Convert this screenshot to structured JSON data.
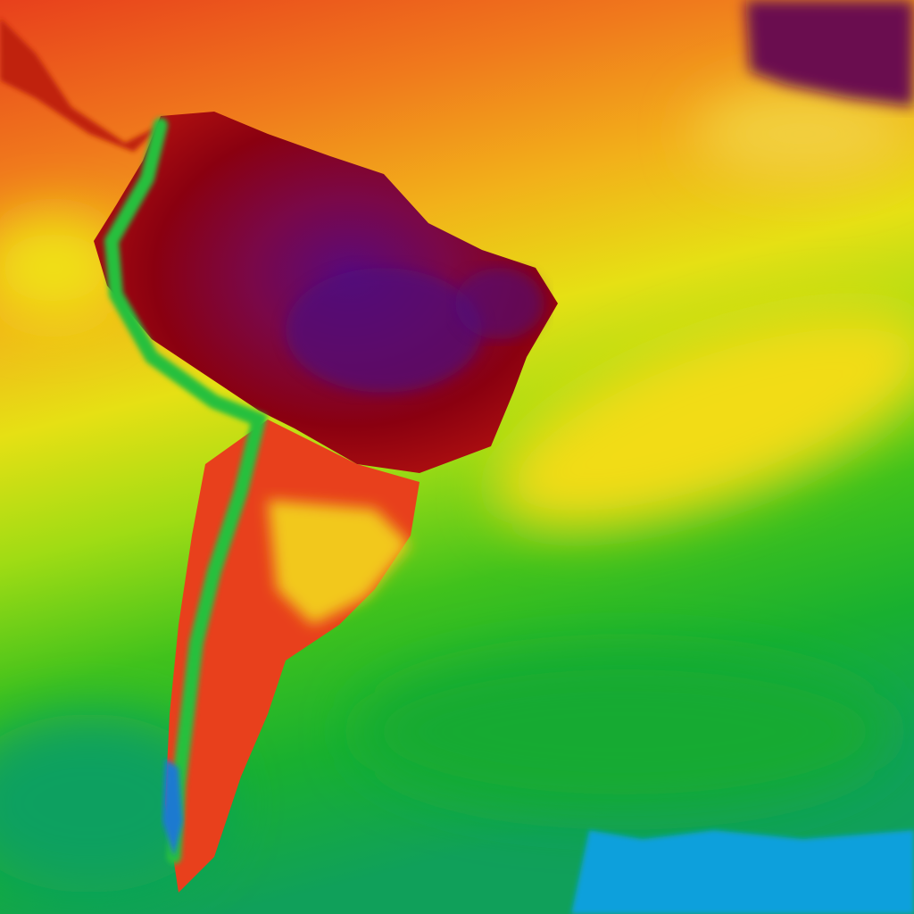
{
  "map": {
    "colors": {
      "hot_extreme": "#5a0a7a",
      "very_hot": "#8a0010",
      "hot": "#e8401c",
      "warm": "#f08a1c",
      "mild_warm": "#f2c81a",
      "mild": "#c8e614",
      "cool": "#50c81c",
      "cold": "#14a848",
      "very_cold": "#0aa0dc"
    }
  }
}
